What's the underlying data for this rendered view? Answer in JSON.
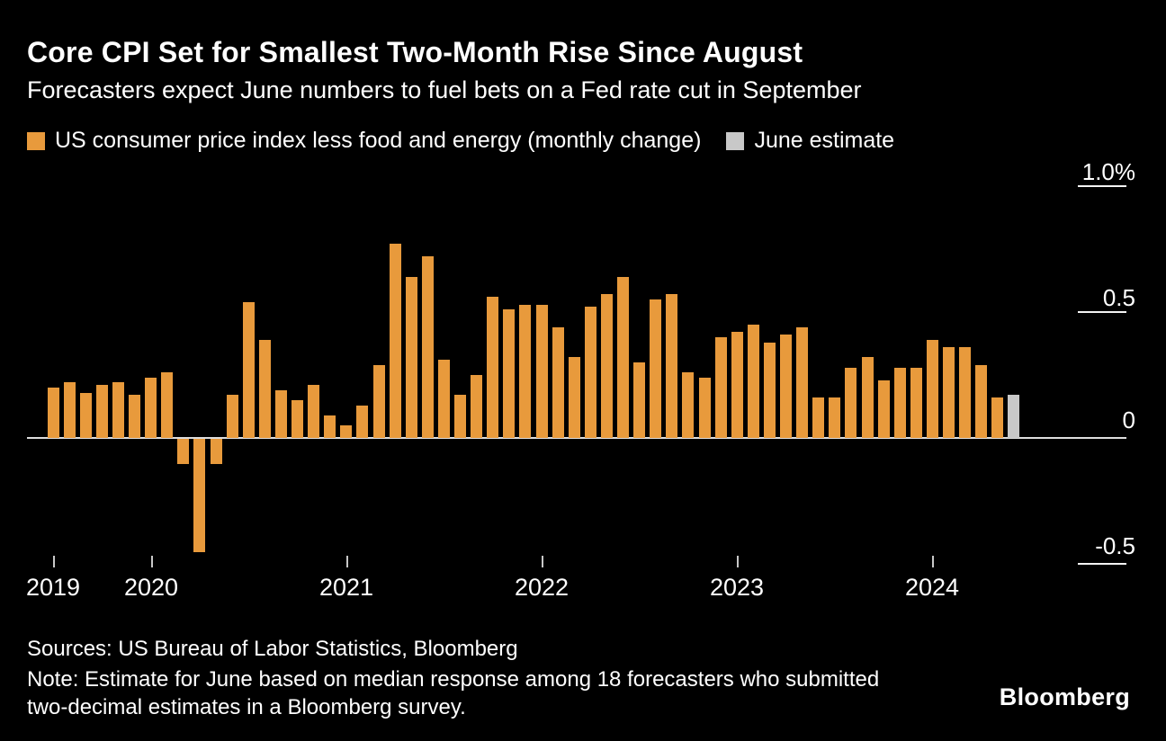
{
  "header": {
    "title": "Core CPI Set for Smallest Two-Month Rise Since August",
    "subtitle": "Forecasters expect June numbers to fuel bets on a Fed rate cut in September"
  },
  "chart_data": {
    "type": "bar",
    "title": "Core CPI Set for Smallest Two-Month Rise Since August",
    "subtitle": "Forecasters expect June numbers to fuel bets on a Fed rate cut in September",
    "unit": "%",
    "ylim": [
      -0.5,
      1.0
    ],
    "grid": "zero-line only, short right-edge stubs at other ticks",
    "legend_position": "top",
    "colors": {
      "actual": "#E89A3C",
      "estimate": "#C8C8C8",
      "background": "#000000",
      "text": "#FFFFFF"
    },
    "legend": [
      {
        "label": "US consumer price index less food and energy (monthly change)",
        "color": "#E89A3C"
      },
      {
        "label": "June estimate",
        "color": "#C8C8C8"
      }
    ],
    "yticks": [
      {
        "label": "1.0%",
        "value": 1.0
      },
      {
        "label": "0.5",
        "value": 0.5
      },
      {
        "label": "0",
        "value": 0
      },
      {
        "label": "-0.5",
        "value": -0.5
      }
    ],
    "year_ticks": [
      {
        "label": "2019",
        "slot": 0
      },
      {
        "label": "2020",
        "slot": 6
      },
      {
        "label": "2021",
        "slot": 18
      },
      {
        "label": "2022",
        "slot": 30
      },
      {
        "label": "2023",
        "slot": 42
      },
      {
        "label": "2024",
        "slot": 54
      }
    ],
    "months": [
      "2019-07",
      "2019-08",
      "2019-09",
      "2019-10",
      "2019-11",
      "2019-12",
      "2020-01",
      "2020-02",
      "2020-03",
      "2020-04",
      "2020-05",
      "2020-06",
      "2020-07",
      "2020-08",
      "2020-09",
      "2020-10",
      "2020-11",
      "2020-12",
      "2021-01",
      "2021-02",
      "2021-03",
      "2021-04",
      "2021-05",
      "2021-06",
      "2021-07",
      "2021-08",
      "2021-09",
      "2021-10",
      "2021-11",
      "2021-12",
      "2022-01",
      "2022-02",
      "2022-03",
      "2022-04",
      "2022-05",
      "2022-06",
      "2022-07",
      "2022-08",
      "2022-09",
      "2022-10",
      "2022-11",
      "2022-12",
      "2023-01",
      "2023-02",
      "2023-03",
      "2023-04",
      "2023-05",
      "2023-06",
      "2023-07",
      "2023-08",
      "2023-09",
      "2023-10",
      "2023-11",
      "2023-12",
      "2024-01",
      "2024-02",
      "2024-03",
      "2024-04",
      "2024-05",
      "2024-06"
    ],
    "values": [
      0.2,
      0.22,
      0.18,
      0.21,
      0.22,
      0.17,
      0.24,
      0.26,
      -0.1,
      -0.45,
      -0.1,
      0.17,
      0.54,
      0.39,
      0.19,
      0.15,
      0.21,
      0.09,
      0.05,
      0.13,
      0.29,
      0.77,
      0.64,
      0.72,
      0.31,
      0.17,
      0.25,
      0.56,
      0.51,
      0.53,
      0.53,
      0.44,
      0.32,
      0.52,
      0.57,
      0.64,
      0.3,
      0.55,
      0.57,
      0.26,
      0.24,
      0.4,
      0.42,
      0.45,
      0.38,
      0.41,
      0.44,
      0.16,
      0.16,
      0.28,
      0.32,
      0.23,
      0.28,
      0.28,
      0.39,
      0.36,
      0.36,
      0.29,
      0.16,
      0.17
    ],
    "estimate_index": 59,
    "estimate_label": "June estimate",
    "estimate_value": 0.17
  },
  "footer": {
    "sources": "Sources: US Bureau of Labor Statistics, Bloomberg",
    "note": "Note: Estimate for June based on median response among 18 forecasters who submitted two-decimal estimates in a Bloomberg survey.",
    "logo": "Bloomberg"
  }
}
